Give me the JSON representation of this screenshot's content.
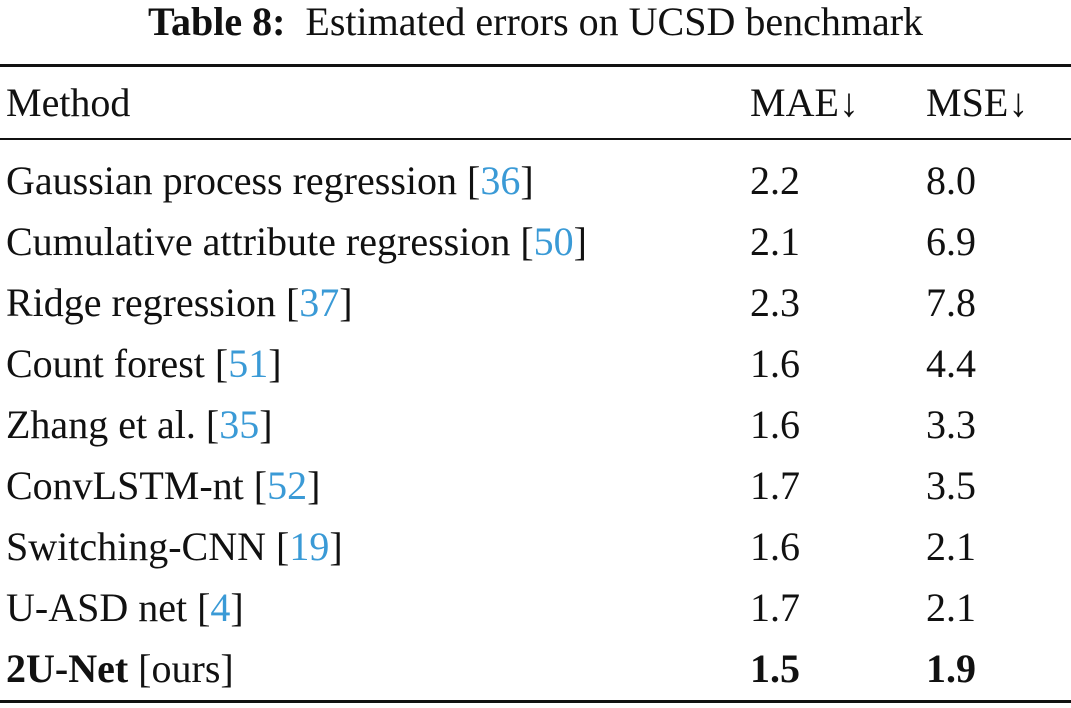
{
  "caption": {
    "label": "Table 8:",
    "text": "Estimated errors on UCSD benchmark"
  },
  "columns": {
    "method": "Method",
    "mae": "MAE↓",
    "mse": "MSE↓"
  },
  "rows": [
    {
      "method": "Gaussian process regression",
      "ref": "36",
      "mae": "2.2",
      "mse": "8.0"
    },
    {
      "method": "Cumulative attribute regression",
      "ref": "50",
      "mae": "2.1",
      "mse": "6.9"
    },
    {
      "method": "Ridge regression",
      "ref": "37",
      "mae": "2.3",
      "mse": "7.8"
    },
    {
      "method": "Count forest",
      "ref": "51",
      "mae": "1.6",
      "mse": "4.4"
    },
    {
      "method": "Zhang et al.",
      "ref": "35",
      "mae": "1.6",
      "mse": "3.3"
    },
    {
      "method": "ConvLSTM-nt",
      "ref": "52",
      "mae": "1.7",
      "mse": "3.5"
    },
    {
      "method": "Switching-CNN",
      "ref": "19",
      "mae": "1.6",
      "mse": "2.1"
    },
    {
      "method": "U-ASD net",
      "ref": "4",
      "mae": "1.7",
      "mse": "2.1"
    }
  ],
  "ours": {
    "method": "2U-Net",
    "tag": "ours",
    "mae": "1.5",
    "mse": "1.9"
  }
}
